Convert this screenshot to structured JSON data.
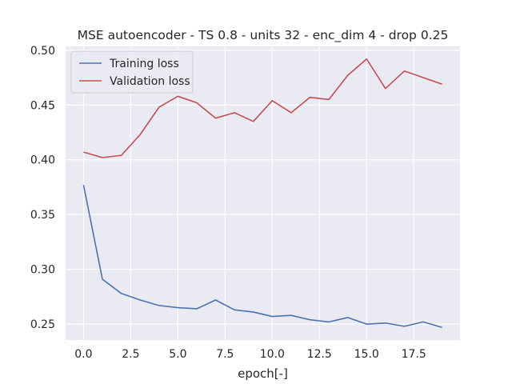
{
  "chart_data": {
    "type": "line",
    "title": "MSE autoencoder - TS 0.8 - units 32 - enc_dim 4 - drop 0.25",
    "xlabel": "epoch[-]",
    "ylabel": "",
    "x": [
      0,
      1,
      2,
      3,
      4,
      5,
      6,
      7,
      8,
      9,
      10,
      11,
      12,
      13,
      14,
      15,
      16,
      17,
      18,
      19
    ],
    "xlim": [
      -0.95,
      19.95
    ],
    "ylim": [
      0.2355,
      0.5035
    ],
    "xticks": [
      0.0,
      2.5,
      5.0,
      7.5,
      10.0,
      12.5,
      15.0,
      17.5
    ],
    "xtick_labels": [
      "0.0",
      "2.5",
      "5.0",
      "7.5",
      "10.0",
      "12.5",
      "15.0",
      "17.5"
    ],
    "yticks": [
      0.25,
      0.3,
      0.35,
      0.4,
      0.45,
      0.5
    ],
    "ytick_labels": [
      "0.25",
      "0.30",
      "0.35",
      "0.40",
      "0.45",
      "0.50"
    ],
    "grid": true,
    "legend_position": "top-left",
    "series": [
      {
        "name": "Training loss",
        "color": "#4c72b0",
        "values": [
          0.377,
          0.291,
          0.278,
          0.272,
          0.267,
          0.265,
          0.264,
          0.272,
          0.263,
          0.261,
          0.257,
          0.258,
          0.254,
          0.252,
          0.256,
          0.25,
          0.251,
          0.248,
          0.252,
          0.247
        ]
      },
      {
        "name": "Validation loss",
        "color": "#c44e52",
        "values": [
          0.407,
          0.402,
          0.404,
          0.423,
          0.448,
          0.458,
          0.452,
          0.438,
          0.443,
          0.435,
          0.454,
          0.443,
          0.457,
          0.455,
          0.477,
          0.492,
          0.465,
          0.481,
          0.475,
          0.469
        ]
      }
    ],
    "colors": {
      "plot_background": "#eaeaf2",
      "grid": "#ffffff",
      "text": "#262626"
    }
  }
}
